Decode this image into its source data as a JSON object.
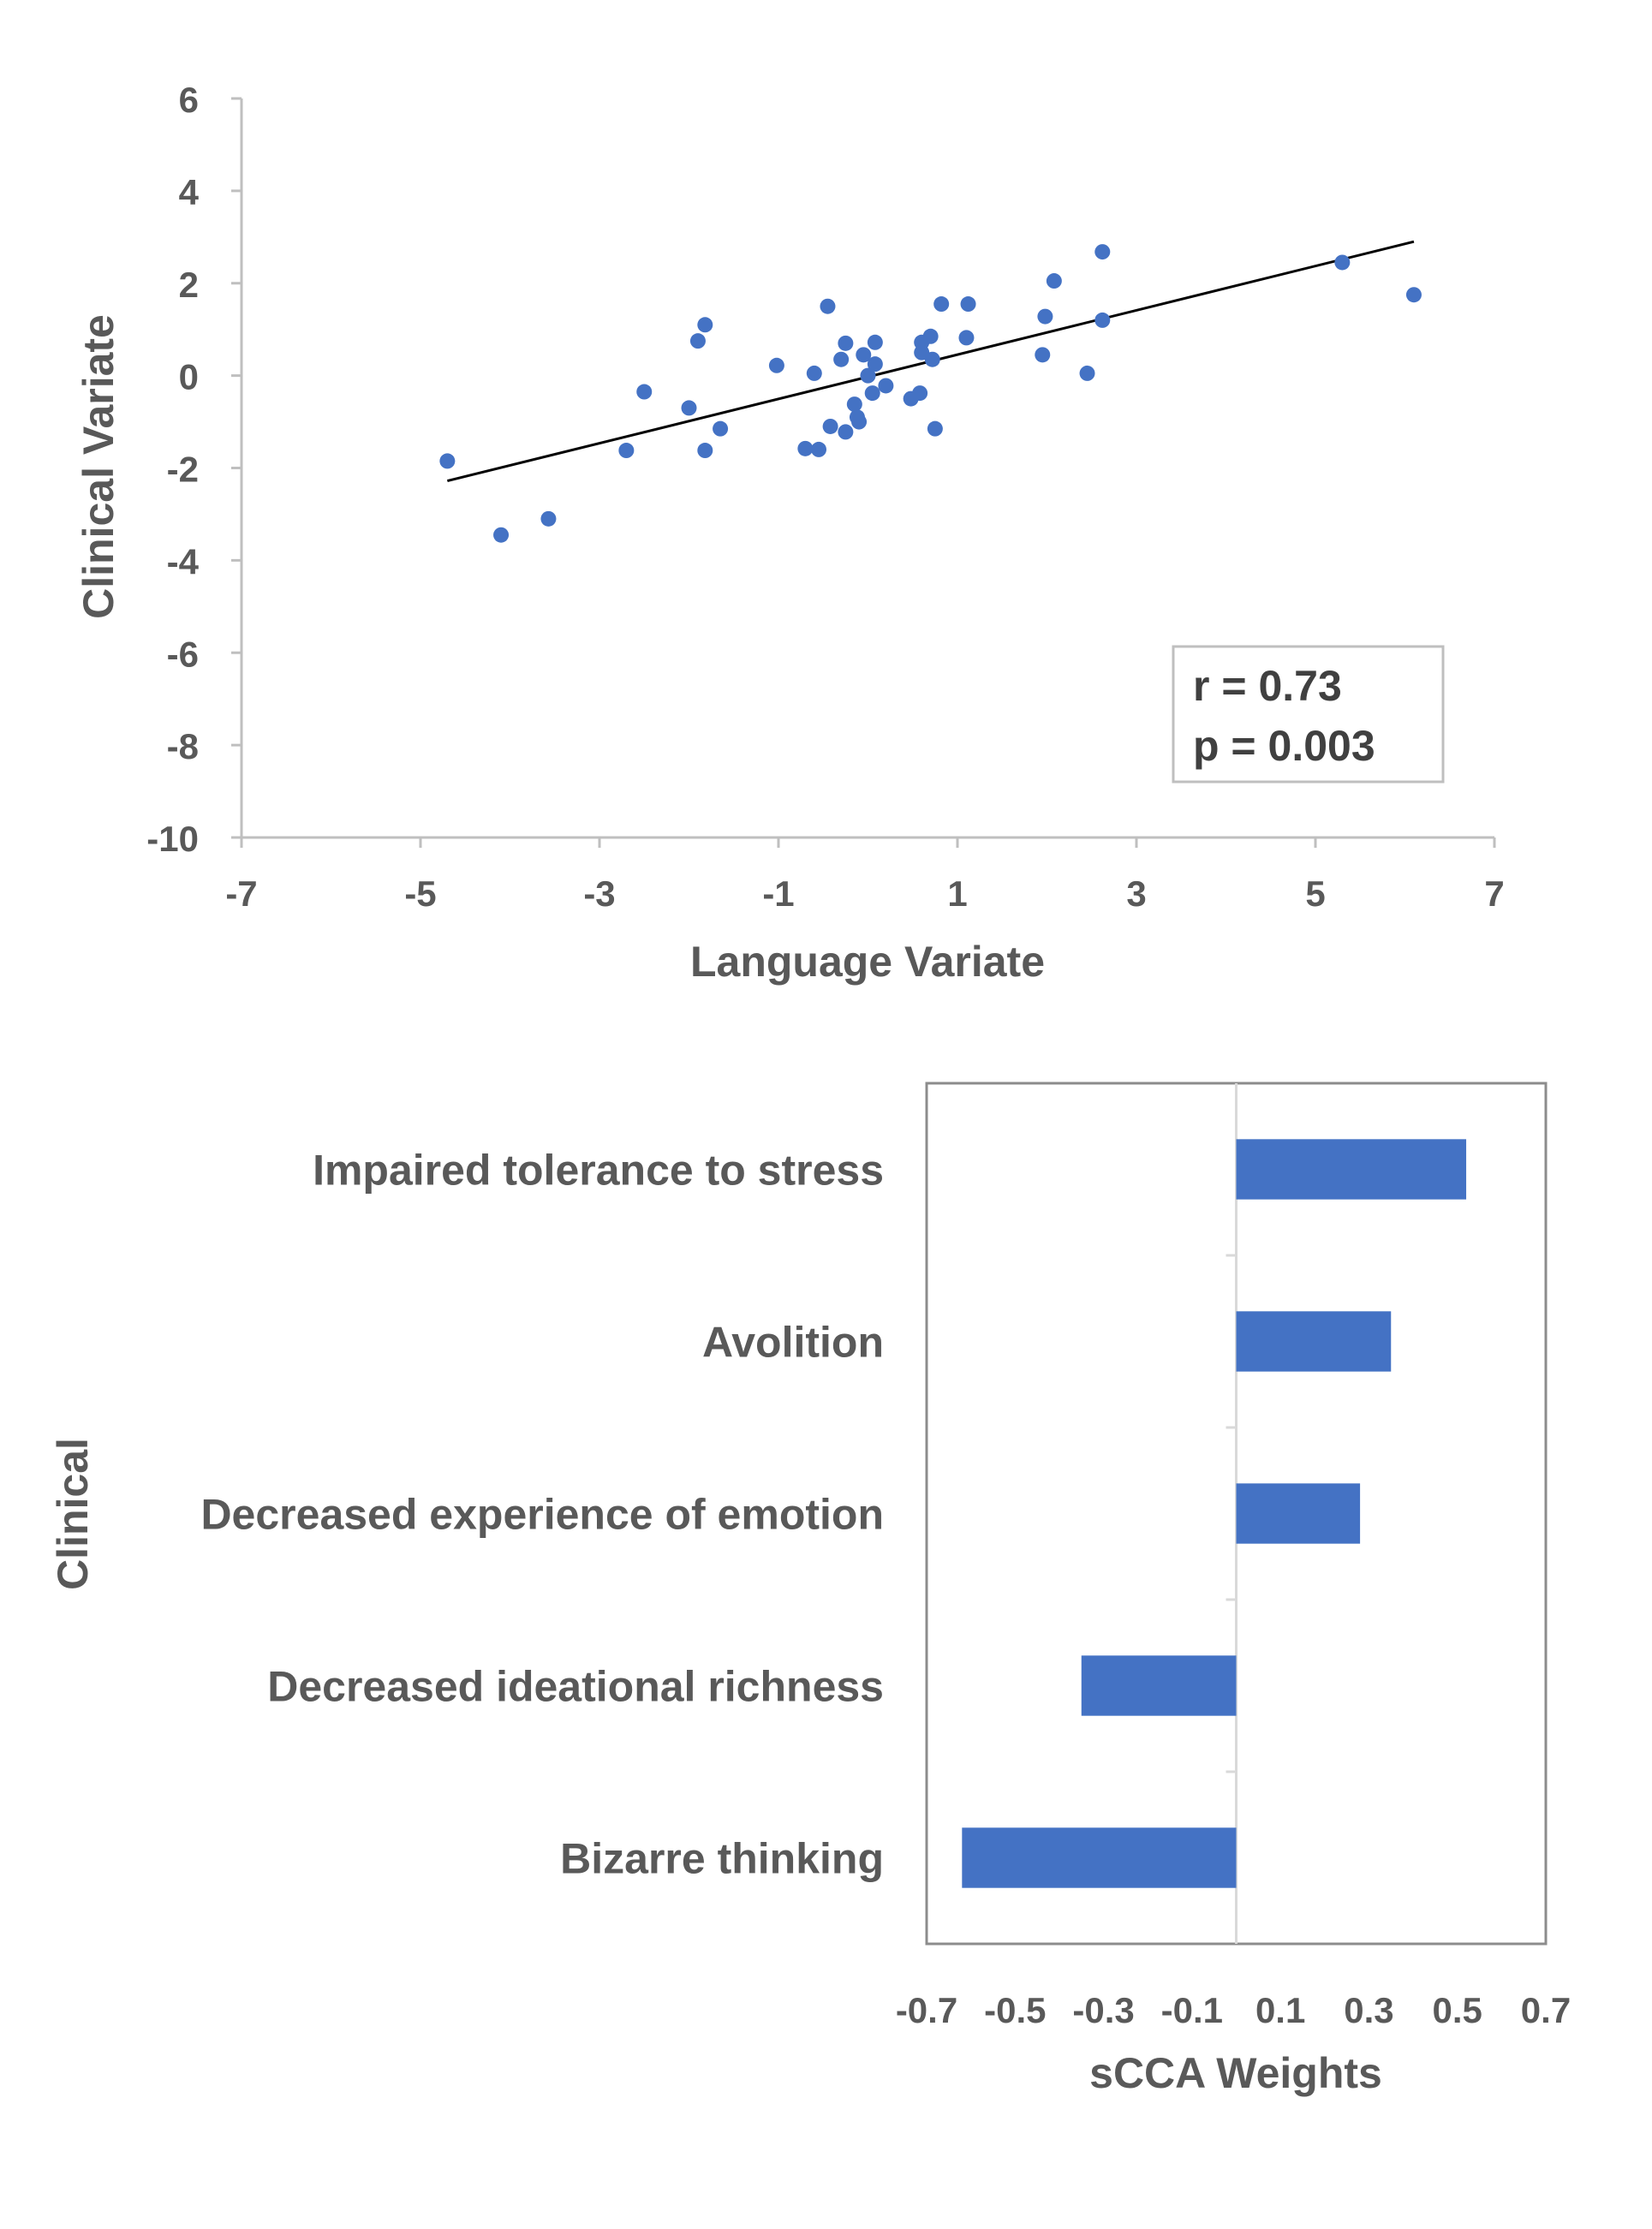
{
  "chart_data": [
    {
      "type": "scatter",
      "title": "",
      "xlabel": "Language Variate",
      "ylabel": "Clinical Variate",
      "xlim": [
        -7,
        7
      ],
      "ylim": [
        -10,
        6
      ],
      "xticks": [
        -7,
        -5,
        -3,
        -1,
        1,
        3,
        5,
        7
      ],
      "yticks": [
        6,
        4,
        2,
        0,
        -2,
        -4,
        -6,
        -8,
        -10
      ],
      "grid": false,
      "point_color": "#4472C4",
      "points": [
        [
          -4.7,
          -1.85
        ],
        [
          -4.1,
          -3.45
        ],
        [
          -3.57,
          -3.1
        ],
        [
          -2.7,
          -1.62
        ],
        [
          -2.5,
          -0.35
        ],
        [
          -2.0,
          -0.7
        ],
        [
          -1.9,
          0.75
        ],
        [
          -1.82,
          1.1
        ],
        [
          -1.82,
          -1.62
        ],
        [
          -1.65,
          -1.15
        ],
        [
          -1.02,
          0.22
        ],
        [
          -0.7,
          -1.58
        ],
        [
          -0.6,
          0.05
        ],
        [
          -0.55,
          -1.6
        ],
        [
          -0.45,
          1.5
        ],
        [
          -0.42,
          -1.1
        ],
        [
          -0.3,
          0.35
        ],
        [
          -0.25,
          0.7
        ],
        [
          -0.25,
          -1.22
        ],
        [
          -0.15,
          -0.62
        ],
        [
          -0.12,
          -0.9
        ],
        [
          -0.1,
          -1.0
        ],
        [
          -0.05,
          0.45
        ],
        [
          0.0,
          0.0
        ],
        [
          0.05,
          -0.38
        ],
        [
          0.08,
          0.25
        ],
        [
          0.08,
          0.72
        ],
        [
          0.2,
          -0.22
        ],
        [
          0.48,
          -0.5
        ],
        [
          0.58,
          -0.38
        ],
        [
          0.6,
          0.72
        ],
        [
          0.6,
          0.5
        ],
        [
          0.7,
          0.85
        ],
        [
          0.72,
          0.35
        ],
        [
          0.75,
          -1.15
        ],
        [
          0.82,
          1.55
        ],
        [
          1.1,
          0.82
        ],
        [
          1.12,
          1.55
        ],
        [
          1.95,
          0.45
        ],
        [
          1.98,
          1.28
        ],
        [
          2.08,
          2.05
        ],
        [
          2.45,
          0.05
        ],
        [
          2.62,
          1.2
        ],
        [
          2.62,
          2.68
        ],
        [
          5.3,
          2.45
        ],
        [
          6.1,
          1.75
        ]
      ],
      "trendline": {
        "x": [
          -4.7,
          6.1
        ],
        "y": [
          -2.28,
          2.9
        ]
      },
      "annotation": {
        "r": "r = 0.73",
        "p": "p = 0.003"
      }
    },
    {
      "type": "bar",
      "orientation": "horizontal",
      "title": "",
      "xlabel": "sCCA Weights",
      "ylabel": "Clinical",
      "xlim": [
        -0.7,
        0.7
      ],
      "xtick_labels": [
        "-0.7",
        "-0.5",
        "-0.3",
        "-0.1",
        "0.1",
        "0.3",
        "0.5",
        "0.7"
      ],
      "bar_color": "#4472C4",
      "categories": [
        "Impaired tolerance to stress",
        "Avolition",
        "Decreased experience of emotion",
        "Decreased ideational richness",
        "Bizarre thinking"
      ],
      "values": [
        0.52,
        0.35,
        0.28,
        -0.35,
        -0.62
      ]
    }
  ]
}
